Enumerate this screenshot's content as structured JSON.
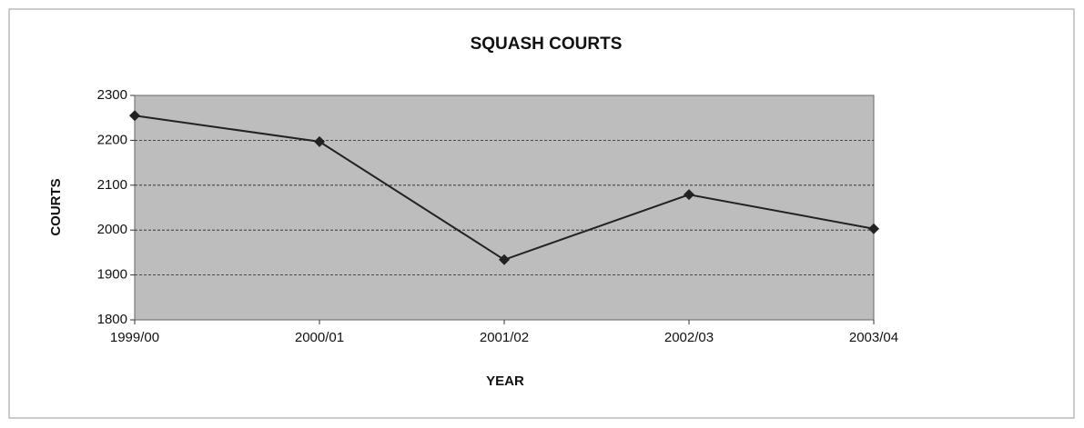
{
  "chart_data": {
    "type": "line",
    "title": "SQUASH COURTS",
    "x_label": "YEAR",
    "y_label": "COURTS",
    "categories": [
      "1999/00",
      "2000/01",
      "2001/02",
      "2002/03",
      "2003/04"
    ],
    "series": [
      {
        "name": "Courts",
        "color": "#222222",
        "values": [
          2255,
          2197,
          1934,
          2079,
          2003
        ]
      }
    ],
    "ylim": [
      1800,
      2300
    ],
    "yticks": [
      1800,
      1900,
      2000,
      2100,
      2200,
      2300
    ],
    "grid": true,
    "legend": false
  }
}
